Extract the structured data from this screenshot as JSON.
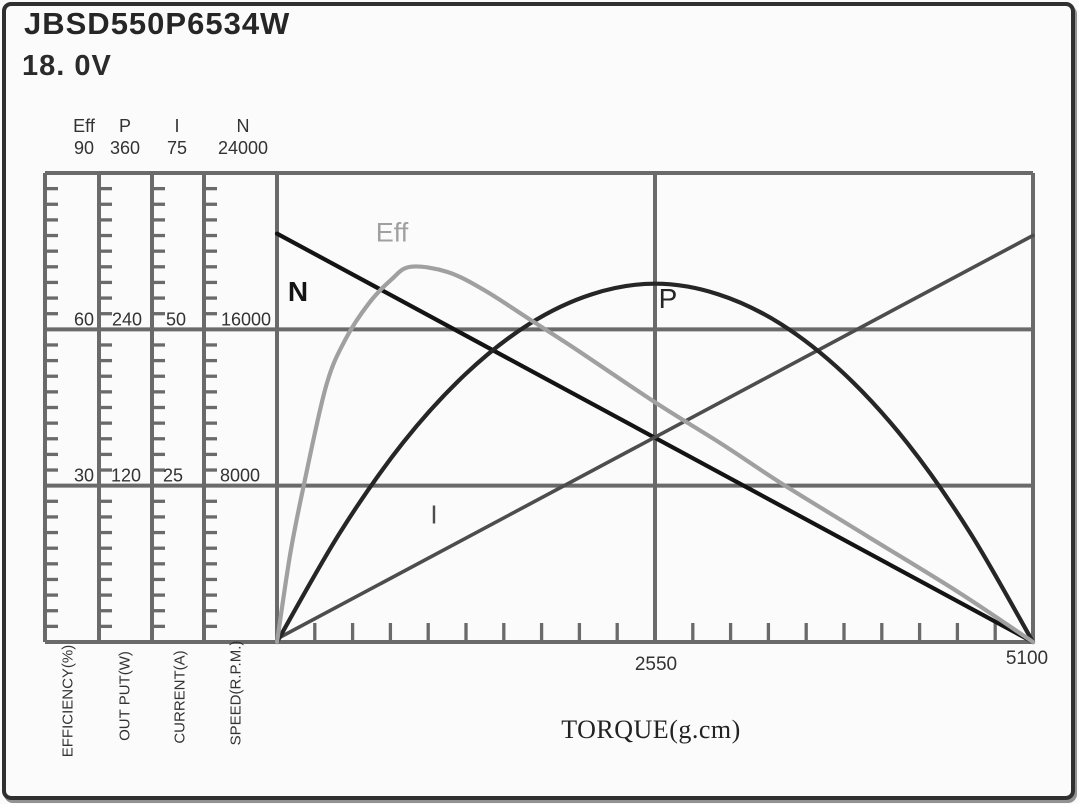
{
  "title": "JBSD550P6534W",
  "voltage": "18. 0V",
  "colors": {
    "grid": "#6a6a6a",
    "frame": "#303030",
    "text": "#333333",
    "eff_curve": "#a0a0a0",
    "speed_curve": "#141414",
    "power_curve": "#262626",
    "current_curve": "#4d4d4d"
  },
  "chart_data": {
    "type": "line",
    "title": "JBSD550P6534W",
    "subtitle": "18. 0V",
    "xlabel": "TORQUE(g.cm)",
    "xlim": [
      0,
      5100
    ],
    "x_tick_labels": [
      "2550",
      "5100"
    ],
    "x_minor_tick_count": 20,
    "grid": "on",
    "y_axes": [
      {
        "id": "eff",
        "header": "Eff",
        "top_label": "90",
        "mid_label": "60",
        "low_label": "30",
        "axis_title": "EFFICIENCY(%)",
        "lim": [
          0,
          90
        ]
      },
      {
        "id": "p",
        "header": "P",
        "top_label": "360",
        "mid_label": "240",
        "low_label": "120",
        "axis_title": "OUT  PUT(W)",
        "lim": [
          0,
          360
        ]
      },
      {
        "id": "i",
        "header": "I",
        "top_label": "75",
        "mid_label": "50",
        "low_label": "25",
        "axis_title": "CURRENT(A)",
        "lim": [
          0,
          75
        ]
      },
      {
        "id": "n",
        "header": "N",
        "top_label": "24000",
        "mid_label": "16000",
        "low_label": "8000",
        "axis_title": "SPEED(R.P.M.)",
        "lim": [
          0,
          24000
        ]
      }
    ],
    "series": [
      {
        "name": "N",
        "axis": "n",
        "color": "#141414",
        "width": 4.2,
        "points": [
          [
            0,
            20900
          ],
          [
            5100,
            0
          ]
        ]
      },
      {
        "name": "I",
        "axis": "i",
        "color": "#4d4d4d",
        "width": 3.6,
        "points": [
          [
            0,
            0.5
          ],
          [
            5100,
            65
          ]
        ]
      },
      {
        "name": "P",
        "axis": "p",
        "color": "#262626",
        "width": 4.2,
        "points": [
          [
            0,
            0
          ],
          [
            425,
            84
          ],
          [
            850,
            153
          ],
          [
            1275,
            206
          ],
          [
            1700,
            244
          ],
          [
            2125,
            267
          ],
          [
            2550,
            275
          ],
          [
            2975,
            267
          ],
          [
            3400,
            244
          ],
          [
            3825,
            206
          ],
          [
            4250,
            153
          ],
          [
            4675,
            84
          ],
          [
            5100,
            0
          ]
        ]
      },
      {
        "name": "Eff",
        "axis": "eff",
        "color": "#a0a0a0",
        "width": 4.2,
        "points": [
          [
            0,
            0
          ],
          [
            90,
            17
          ],
          [
            180,
            30
          ],
          [
            330,
            49
          ],
          [
            460,
            58
          ],
          [
            620,
            65
          ],
          [
            770,
            69.5
          ],
          [
            900,
            72
          ],
          [
            1150,
            71
          ],
          [
            1400,
            67.5
          ],
          [
            1700,
            62
          ],
          [
            2000,
            56.5
          ],
          [
            2550,
            46
          ],
          [
            3000,
            38
          ],
          [
            3400,
            30.5
          ],
          [
            4000,
            20
          ],
          [
            4600,
            9.5
          ],
          [
            5100,
            0
          ]
        ]
      }
    ]
  }
}
